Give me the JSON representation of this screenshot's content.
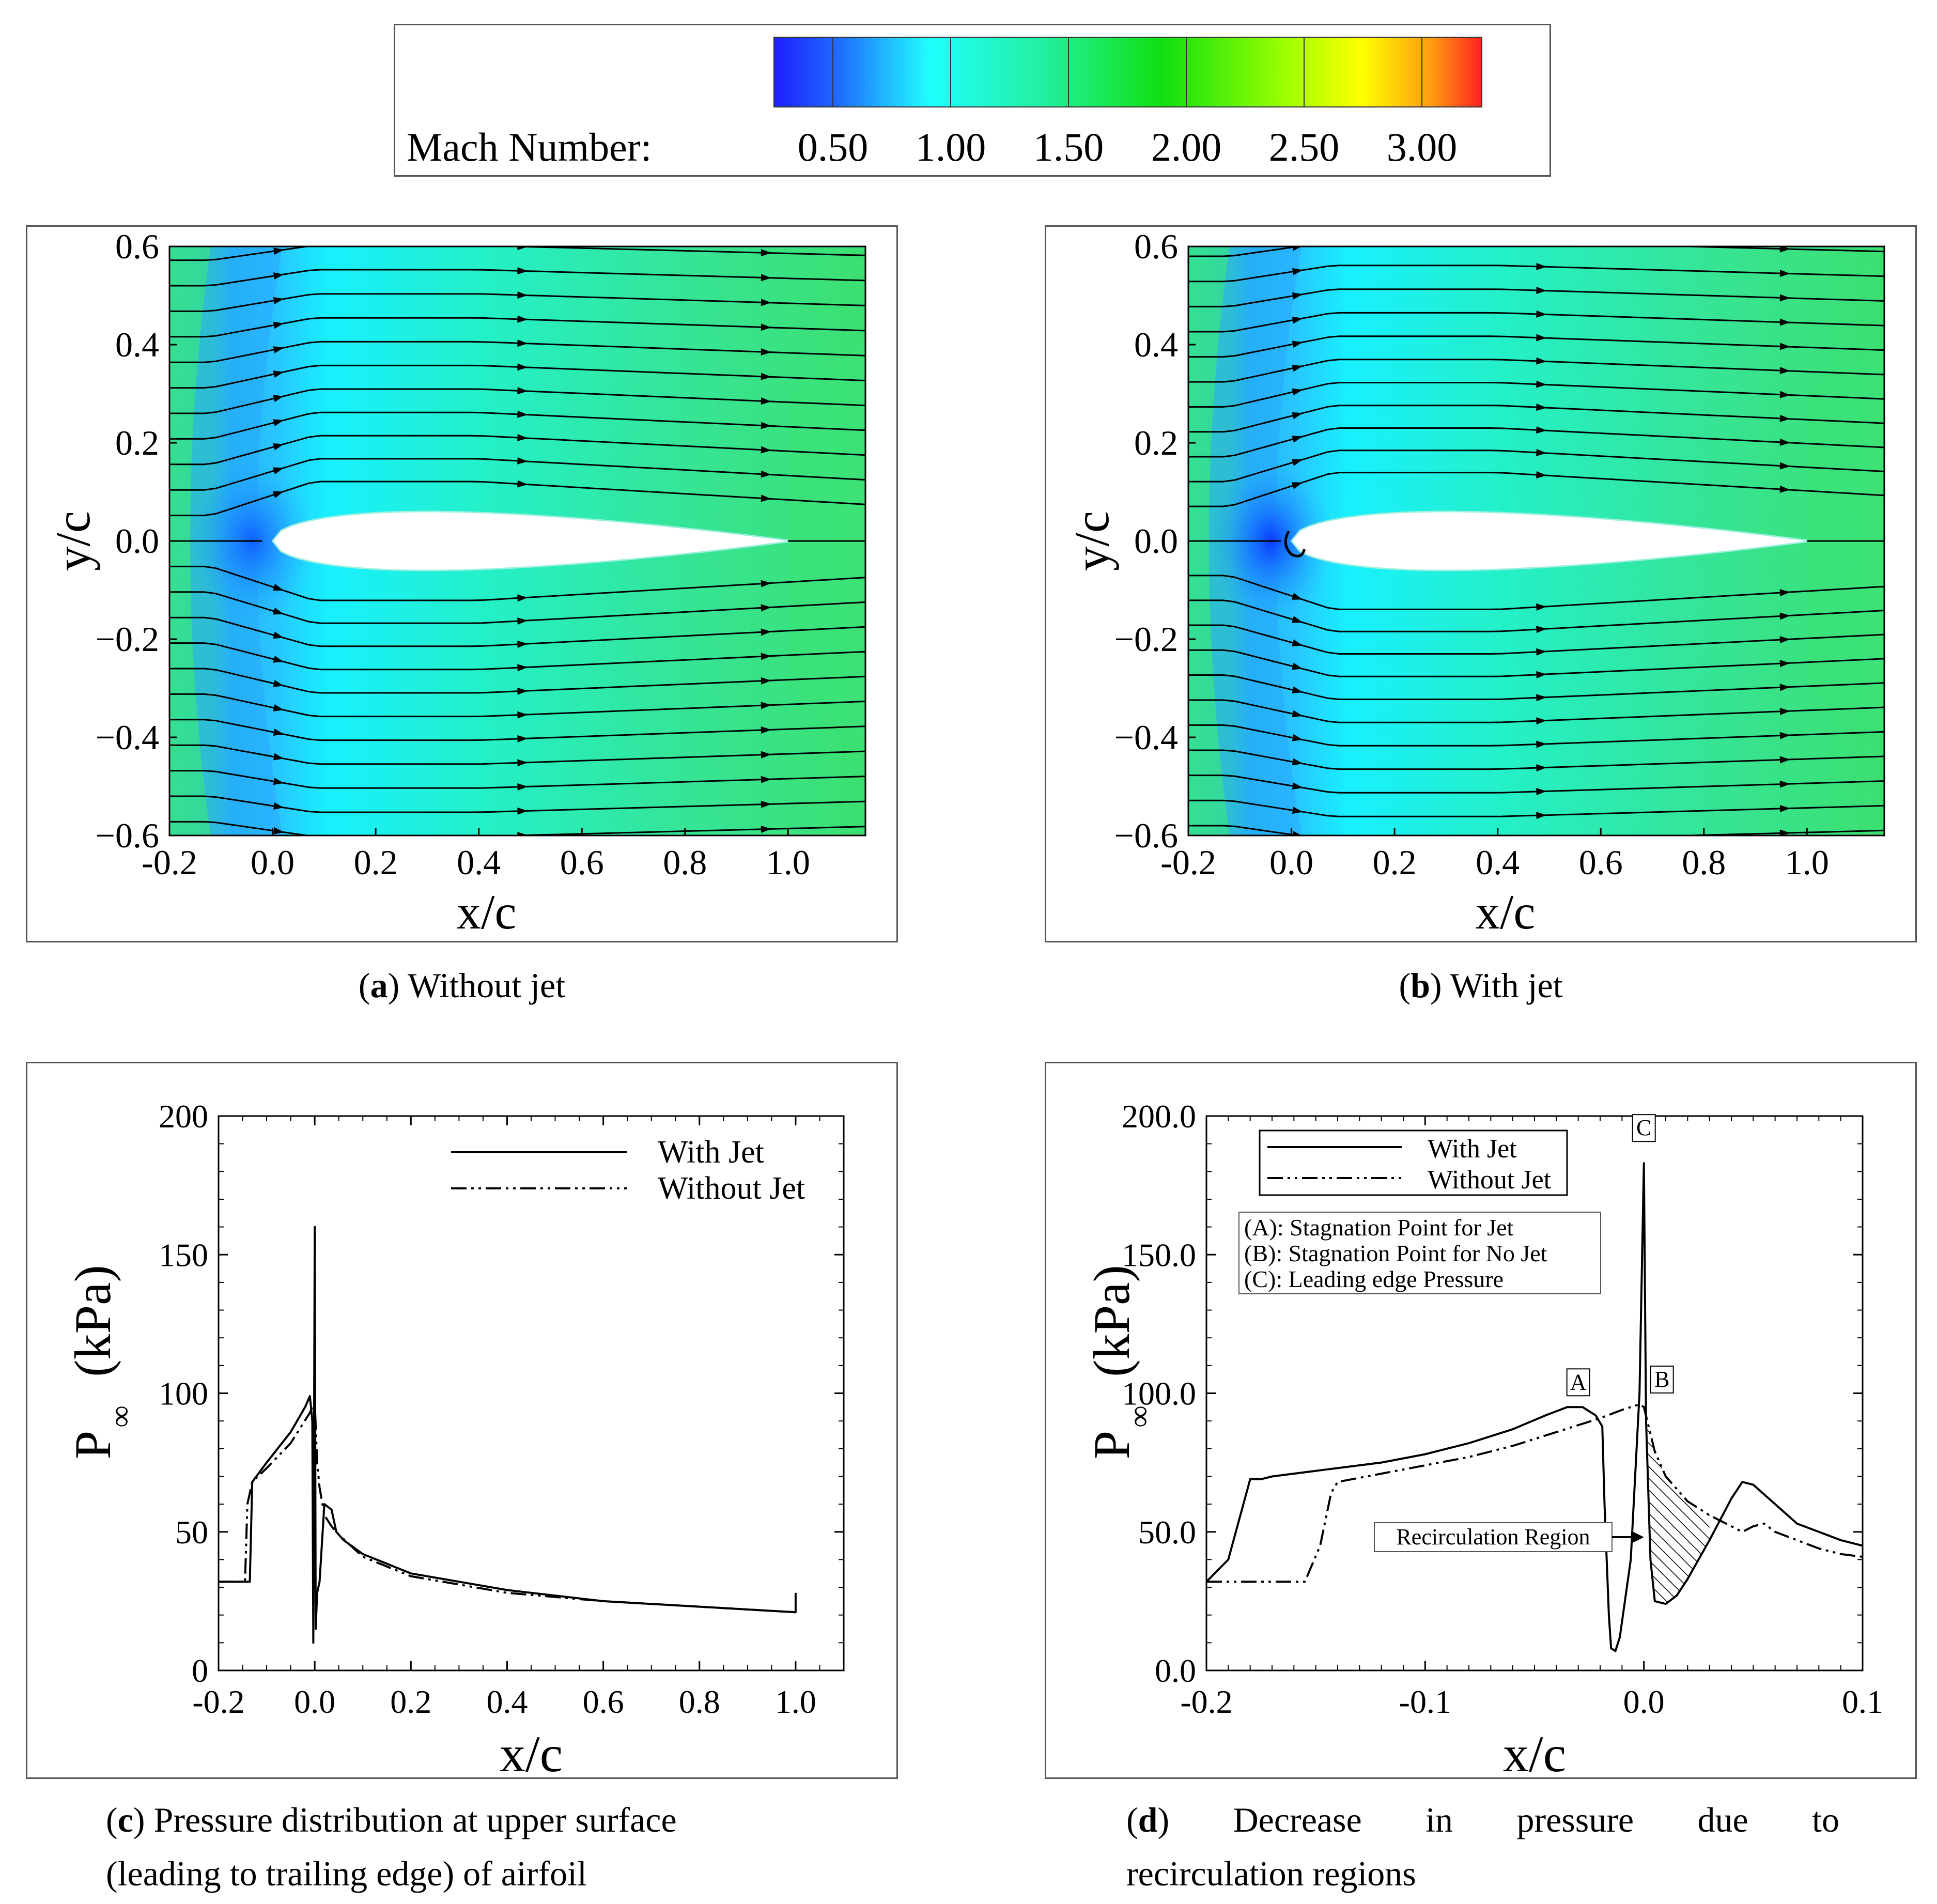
{
  "colorbar": {
    "label": "Mach Number:",
    "ticks": [
      "0.50",
      "1.00",
      "1.50",
      "2.00",
      "2.50",
      "3.00"
    ]
  },
  "captions": {
    "a": {
      "tag": "a",
      "text": "Without jet"
    },
    "b": {
      "tag": "b",
      "text": "With jet"
    },
    "c": {
      "tag": "c",
      "line1": "Pressure distribution at upper surface",
      "line2": "(leading to trailing edge) of airfoil"
    },
    "d": {
      "tag": "d",
      "line1": "Decrease in pressure due to",
      "line2": "recirculation regions"
    }
  },
  "chart_data": [
    {
      "id": "a",
      "type": "contour",
      "title": "Without jet",
      "xlabel": "x/c",
      "ylabel": "y/c",
      "xlim": [
        -0.2,
        1.15
      ],
      "ylim": [
        -0.6,
        0.6
      ],
      "xticks": [
        "-0.2",
        "0.0",
        "0.2",
        "0.4",
        "0.6",
        "0.8",
        "1.0"
      ],
      "yticks": [
        "0.6",
        "0.4",
        "0.2",
        "0.0",
        "-0.2",
        "-0.4",
        "-0.6"
      ]
    },
    {
      "id": "b",
      "type": "contour",
      "title": "With jet",
      "xlabel": "x/c",
      "ylabel": "y/c",
      "xlim": [
        -0.2,
        1.15
      ],
      "ylim": [
        -0.6,
        0.6
      ],
      "xticks": [
        "-0.2",
        "0.0",
        "0.2",
        "0.4",
        "0.6",
        "0.8",
        "1.0"
      ],
      "yticks": [
        "0.6",
        "0.4",
        "0.2",
        "0.0",
        "-0.2",
        "-0.4",
        "-0.6"
      ]
    },
    {
      "id": "c",
      "type": "line",
      "xlabel": "x/c",
      "ylabel_main": "P",
      "ylabel_sub": "∞",
      "ylabel_unit": "(kPa)",
      "xlim": [
        -0.2,
        1.1
      ],
      "ylim": [
        0,
        200
      ],
      "xticks": [
        "-0.2",
        "0.0",
        "0.2",
        "0.4",
        "0.6",
        "0.8",
        "1.0"
      ],
      "yticks": [
        "200",
        "150",
        "100",
        "50",
        "0"
      ],
      "series": [
        {
          "name": "With Jet",
          "dash": "solid",
          "points": [
            [
              -0.2,
              32
            ],
            [
              -0.135,
              32
            ],
            [
              -0.13,
              68
            ],
            [
              -0.1,
              75
            ],
            [
              -0.05,
              86
            ],
            [
              -0.02,
              95
            ],
            [
              -0.01,
              99
            ],
            [
              -0.005,
              90
            ],
            [
              -0.003,
              10
            ],
            [
              0.0,
              160
            ],
            [
              0.002,
              15
            ],
            [
              0.005,
              28
            ],
            [
              0.01,
              32
            ],
            [
              0.02,
              60
            ],
            [
              0.035,
              58
            ],
            [
              0.045,
              50
            ],
            [
              0.06,
              47
            ],
            [
              0.1,
              42
            ],
            [
              0.2,
              35
            ],
            [
              0.4,
              29
            ],
            [
              0.6,
              25
            ],
            [
              0.8,
              23
            ],
            [
              1.0,
              21
            ],
            [
              1.0,
              28
            ]
          ]
        },
        {
          "name": "Without Jet",
          "dash": "dashdotdot",
          "points": [
            [
              -0.2,
              32
            ],
            [
              -0.145,
              32
            ],
            [
              -0.14,
              60
            ],
            [
              -0.13,
              68
            ],
            [
              -0.1,
              73
            ],
            [
              -0.05,
              82
            ],
            [
              -0.01,
              93
            ],
            [
              0.0,
              97
            ],
            [
              0.005,
              75
            ],
            [
              0.01,
              66
            ],
            [
              0.02,
              56
            ],
            [
              0.035,
              52
            ],
            [
              0.05,
              49
            ],
            [
              0.1,
              41
            ],
            [
              0.2,
              34
            ],
            [
              0.4,
              28
            ],
            [
              0.6,
              25
            ],
            [
              0.8,
              23
            ],
            [
              1.0,
              21
            ]
          ]
        }
      ]
    },
    {
      "id": "d",
      "type": "line",
      "xlabel": "x/c",
      "ylabel_main": "P",
      "ylabel_sub": "∞",
      "ylabel_unit": "(kPa)",
      "xlim": [
        -0.2,
        0.1
      ],
      "ylim": [
        0,
        200
      ],
      "xticks": [
        "-0.2",
        "-0.1",
        "0.0",
        "0.1"
      ],
      "yticks": [
        "200.0",
        "150.0",
        "100.0",
        "50.0",
        "0.0"
      ],
      "series": [
        {
          "name": "With Jet",
          "dash": "solid",
          "points": [
            [
              -0.2,
              32
            ],
            [
              -0.19,
              40
            ],
            [
              -0.18,
              69
            ],
            [
              -0.175,
              69
            ],
            [
              -0.17,
              70
            ],
            [
              -0.15,
              72
            ],
            [
              -0.12,
              75
            ],
            [
              -0.1,
              78
            ],
            [
              -0.08,
              82
            ],
            [
              -0.06,
              87
            ],
            [
              -0.045,
              92
            ],
            [
              -0.035,
              95
            ],
            [
              -0.028,
              95
            ],
            [
              -0.022,
              92
            ],
            [
              -0.019,
              88
            ],
            [
              -0.018,
              60
            ],
            [
              -0.016,
              20
            ],
            [
              -0.015,
              8
            ],
            [
              -0.013,
              7
            ],
            [
              -0.011,
              12
            ],
            [
              -0.006,
              40
            ],
            [
              -0.002,
              100
            ],
            [
              0.0,
              183
            ],
            [
              0.001,
              90
            ],
            [
              0.003,
              40
            ],
            [
              0.005,
              25
            ],
            [
              0.01,
              24
            ],
            [
              0.015,
              27
            ],
            [
              0.02,
              33
            ],
            [
              0.03,
              47
            ],
            [
              0.04,
              62
            ],
            [
              0.045,
              68
            ],
            [
              0.05,
              67
            ],
            [
              0.06,
              60
            ],
            [
              0.07,
              53
            ],
            [
              0.08,
              50
            ],
            [
              0.09,
              47
            ],
            [
              0.1,
              45
            ]
          ]
        },
        {
          "name": "Without Jet",
          "dash": "dashdotdot",
          "points": [
            [
              -0.2,
              32
            ],
            [
              -0.16,
              32
            ],
            [
              -0.155,
              32
            ],
            [
              -0.148,
              45
            ],
            [
              -0.143,
              64
            ],
            [
              -0.14,
              68
            ],
            [
              -0.12,
              71
            ],
            [
              -0.1,
              74
            ],
            [
              -0.08,
              77
            ],
            [
              -0.06,
              81
            ],
            [
              -0.04,
              86
            ],
            [
              -0.02,
              91
            ],
            [
              -0.01,
              94
            ],
            [
              -0.002,
              96
            ],
            [
              0.0,
              95
            ],
            [
              0.005,
              79
            ],
            [
              0.01,
              70
            ],
            [
              0.02,
              61
            ],
            [
              0.03,
              56
            ],
            [
              0.04,
              52
            ],
            [
              0.045,
              50
            ],
            [
              0.05,
              52
            ],
            [
              0.055,
              53
            ],
            [
              0.06,
              50
            ],
            [
              0.07,
              47
            ],
            [
              0.08,
              44
            ],
            [
              0.09,
              42
            ],
            [
              0.1,
              41
            ]
          ]
        }
      ],
      "callouts": [
        {
          "label": "A",
          "x": -0.03,
          "y": 95
        },
        {
          "label": "B",
          "x": 0.0,
          "y": 96
        },
        {
          "label": "C",
          "x": 0.0,
          "y": 183
        }
      ],
      "notes": [
        "(A): Stagnation Point for Jet",
        "(B): Stagnation Point for No Jet",
        "(C): Leading edge Pressure"
      ],
      "annotation": "Recirculation Region"
    }
  ]
}
